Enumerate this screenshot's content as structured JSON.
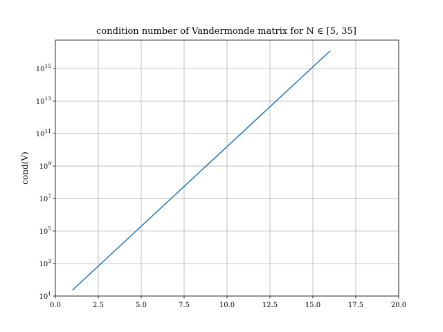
{
  "chart_data": {
    "type": "line",
    "title": "condition number of Vandermonde matrix for N ∈ [5, 35]",
    "xlabel": "",
    "ylabel": "cond(V)",
    "xlim": [
      0,
      20
    ],
    "ylim_log10": [
      1,
      16.75
    ],
    "yscale": "log",
    "grid": true,
    "x_ticks": [
      {
        "value": 0,
        "label": "0.0"
      },
      {
        "value": 2.5,
        "label": "2.5"
      },
      {
        "value": 5,
        "label": "5.0"
      },
      {
        "value": 7.5,
        "label": "7.5"
      },
      {
        "value": 10,
        "label": "10.0"
      },
      {
        "value": 12.5,
        "label": "12.5"
      },
      {
        "value": 15,
        "label": "15.0"
      },
      {
        "value": 17.5,
        "label": "17.5"
      },
      {
        "value": 20,
        "label": "20.0"
      }
    ],
    "y_ticks": [
      {
        "exp": 1,
        "base": "10",
        "power": "1"
      },
      {
        "exp": 3,
        "base": "10",
        "power": "3"
      },
      {
        "exp": 5,
        "base": "10",
        "power": "5"
      },
      {
        "exp": 7,
        "base": "10",
        "power": "7"
      },
      {
        "exp": 9,
        "base": "10",
        "power": "9"
      },
      {
        "exp": 11,
        "base": "10",
        "power": "11"
      },
      {
        "exp": 13,
        "base": "10",
        "power": "13"
      },
      {
        "exp": 15,
        "base": "10",
        "power": "15"
      }
    ],
    "series": [
      {
        "color": "#1f77b4",
        "x": [
          1,
          16
        ],
        "y_log10": [
          1.37,
          16.08
        ]
      }
    ]
  }
}
